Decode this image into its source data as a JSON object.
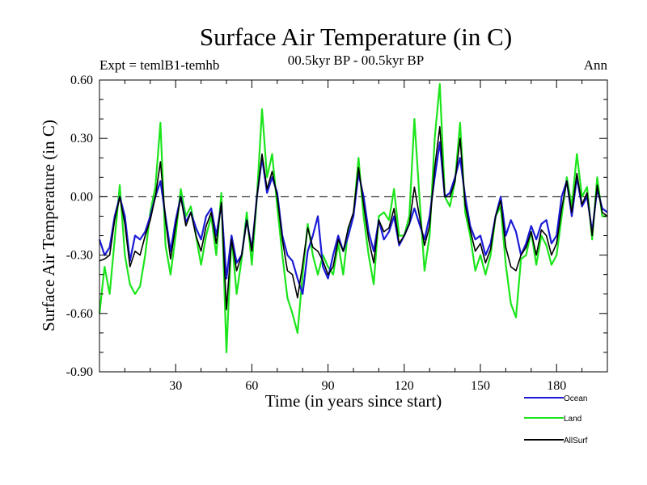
{
  "chart_data": {
    "type": "line",
    "title": "Surface Air Temperature (in C)",
    "subtitle_left": "Expt = temlB1-temhb",
    "subtitle_center": "00.5kyr BP - 00.5kyr BP",
    "subtitle_right": "Ann",
    "xlabel": "Time (in years since start)",
    "ylabel": "Surface Air Temperature (in C)",
    "xlim": [
      0,
      200
    ],
    "ylim": [
      -0.9,
      0.6
    ],
    "xticks": [
      30,
      60,
      90,
      120,
      150,
      180
    ],
    "xtick_labels": [
      "30",
      "60",
      "90",
      "120",
      "150",
      "180"
    ],
    "yticks": [
      -0.9,
      -0.6,
      -0.3,
      0.0,
      0.3,
      0.6
    ],
    "ytick_labels": [
      "-0.90",
      "-0.60",
      "-0.30",
      "0.00",
      "0.30",
      "0.60"
    ],
    "reference_line": {
      "y": 0.0,
      "style": "dashed"
    },
    "legend_position": "bottom-right",
    "x": [
      0,
      2,
      4,
      6,
      8,
      10,
      12,
      14,
      16,
      18,
      20,
      22,
      24,
      26,
      28,
      30,
      32,
      34,
      36,
      38,
      40,
      42,
      44,
      46,
      48,
      50,
      52,
      54,
      56,
      58,
      60,
      62,
      64,
      66,
      68,
      70,
      72,
      74,
      76,
      78,
      80,
      82,
      84,
      86,
      88,
      90,
      92,
      94,
      96,
      98,
      100,
      102,
      104,
      106,
      108,
      110,
      112,
      114,
      116,
      118,
      120,
      122,
      124,
      126,
      128,
      130,
      132,
      134,
      136,
      138,
      140,
      142,
      144,
      146,
      148,
      150,
      152,
      154,
      156,
      158,
      160,
      162,
      164,
      166,
      168,
      170,
      172,
      174,
      176,
      178,
      180,
      182,
      184,
      186,
      188,
      190,
      192,
      194,
      196,
      198,
      200
    ],
    "series": [
      {
        "name": "Ocean",
        "color": "#1a1ad6",
        "values": [
          -0.22,
          -0.3,
          -0.26,
          -0.1,
          0.0,
          -0.1,
          -0.33,
          -0.2,
          -0.22,
          -0.18,
          -0.1,
          0.0,
          0.08,
          -0.1,
          -0.28,
          -0.12,
          0.0,
          -0.13,
          -0.08,
          -0.16,
          -0.22,
          -0.1,
          -0.06,
          -0.2,
          -0.04,
          -0.42,
          -0.2,
          -0.34,
          -0.3,
          -0.12,
          -0.27,
          0.0,
          0.2,
          0.02,
          0.1,
          0.02,
          -0.2,
          -0.3,
          -0.33,
          -0.42,
          -0.5,
          -0.28,
          -0.2,
          -0.1,
          -0.36,
          -0.42,
          -0.3,
          -0.2,
          -0.28,
          -0.2,
          -0.1,
          0.12,
          0.0,
          -0.18,
          -0.28,
          -0.12,
          -0.22,
          -0.18,
          -0.1,
          -0.25,
          -0.2,
          -0.14,
          -0.06,
          -0.14,
          -0.22,
          -0.1,
          0.1,
          0.28,
          0.0,
          0.02,
          0.1,
          0.2,
          0.0,
          -0.15,
          -0.22,
          -0.2,
          -0.3,
          -0.24,
          -0.1,
          0.0,
          -0.2,
          -0.12,
          -0.18,
          -0.3,
          -0.24,
          -0.15,
          -0.22,
          -0.14,
          -0.12,
          -0.24,
          -0.2,
          0.0,
          0.08,
          -0.1,
          0.1,
          -0.05,
          0.0,
          -0.18,
          0.04,
          -0.06,
          -0.08
        ]
      },
      {
        "name": "Land",
        "color": "#1ce51c",
        "values": [
          -0.6,
          -0.36,
          -0.5,
          -0.22,
          0.06,
          -0.3,
          -0.45,
          -0.5,
          -0.46,
          -0.3,
          -0.08,
          0.05,
          0.38,
          -0.25,
          -0.4,
          -0.2,
          0.04,
          -0.1,
          -0.05,
          -0.2,
          -0.35,
          -0.2,
          -0.1,
          -0.3,
          0.02,
          -0.8,
          -0.2,
          -0.5,
          -0.32,
          -0.08,
          -0.35,
          0.0,
          0.45,
          0.1,
          0.22,
          -0.05,
          -0.3,
          -0.52,
          -0.6,
          -0.7,
          -0.4,
          -0.14,
          -0.3,
          -0.4,
          -0.3,
          -0.36,
          -0.4,
          -0.24,
          -0.4,
          -0.16,
          -0.1,
          0.2,
          -0.1,
          -0.3,
          -0.45,
          -0.1,
          -0.08,
          -0.12,
          0.04,
          -0.2,
          -0.2,
          -0.1,
          0.4,
          0.0,
          -0.38,
          -0.2,
          0.3,
          0.58,
          0.0,
          -0.05,
          0.08,
          0.38,
          -0.08,
          -0.2,
          -0.38,
          -0.3,
          -0.4,
          -0.3,
          -0.1,
          -0.05,
          -0.35,
          -0.55,
          -0.62,
          -0.32,
          -0.3,
          -0.18,
          -0.35,
          -0.2,
          -0.25,
          -0.35,
          -0.3,
          -0.1,
          0.1,
          -0.05,
          0.22,
          0.0,
          0.05,
          -0.22,
          0.1,
          -0.1,
          -0.1
        ]
      },
      {
        "name": "AllSurf",
        "color": "#000000",
        "values": [
          -0.33,
          -0.32,
          -0.3,
          -0.12,
          0.0,
          -0.14,
          -0.36,
          -0.28,
          -0.3,
          -0.2,
          -0.12,
          0.0,
          0.18,
          -0.12,
          -0.32,
          -0.15,
          0.0,
          -0.15,
          -0.08,
          -0.2,
          -0.28,
          -0.15,
          -0.08,
          -0.24,
          -0.03,
          -0.58,
          -0.22,
          -0.38,
          -0.3,
          -0.12,
          -0.28,
          0.0,
          0.22,
          0.04,
          0.13,
          0.0,
          -0.22,
          -0.38,
          -0.4,
          -0.52,
          -0.35,
          -0.16,
          -0.26,
          -0.28,
          -0.33,
          -0.4,
          -0.36,
          -0.22,
          -0.28,
          -0.16,
          -0.08,
          0.15,
          -0.04,
          -0.22,
          -0.34,
          -0.12,
          -0.18,
          -0.16,
          -0.06,
          -0.24,
          -0.2,
          -0.14,
          0.05,
          -0.1,
          -0.25,
          -0.15,
          0.15,
          0.36,
          0.0,
          0.0,
          0.08,
          0.3,
          -0.04,
          -0.17,
          -0.28,
          -0.24,
          -0.34,
          -0.27,
          -0.1,
          -0.02,
          -0.26,
          -0.36,
          -0.38,
          -0.3,
          -0.26,
          -0.18,
          -0.3,
          -0.17,
          -0.2,
          -0.3,
          -0.24,
          -0.06,
          0.08,
          -0.08,
          0.12,
          -0.04,
          0.02,
          -0.2,
          0.06,
          -0.08,
          -0.1
        ]
      }
    ]
  }
}
